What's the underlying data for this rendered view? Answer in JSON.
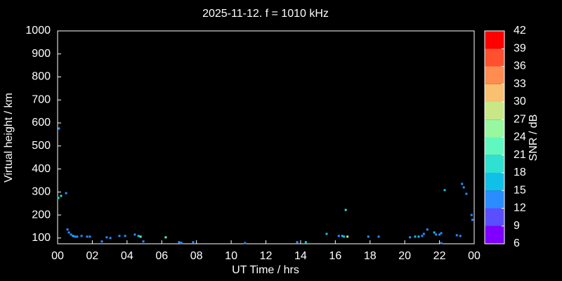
{
  "chart_data": {
    "type": "scatter",
    "title": "2025-11-12. f = 1010 kHz",
    "xlabel": "UT Time / hrs",
    "ylabel": "Virtual height / km",
    "xlim": [
      0,
      24
    ],
    "ylim": [
      75,
      1000
    ],
    "xticks": [
      {
        "value": 0,
        "label": "00"
      },
      {
        "value": 2,
        "label": "02"
      },
      {
        "value": 4,
        "label": "04"
      },
      {
        "value": 6,
        "label": "06"
      },
      {
        "value": 8,
        "label": "08"
      },
      10,
      12,
      14,
      16,
      18,
      20,
      22,
      {
        "value": 24,
        "label": "00"
      }
    ],
    "yticks": [
      100,
      200,
      300,
      400,
      500,
      600,
      700,
      800,
      900,
      1000
    ],
    "x": [
      0.08,
      0.04,
      0.2,
      0.49,
      0.57,
      0.65,
      0.77,
      0.89,
      1.01,
      1.13,
      1.38,
      1.7,
      1.86,
      2.55,
      2.83,
      3.04,
      3.56,
      3.89,
      4.45,
      4.66,
      4.78,
      4.94,
      6.23,
      7.0,
      7.13,
      7.81,
      10.8,
      13.8,
      14.3,
      15.5,
      16.2,
      16.4,
      16.5,
      16.6,
      16.7,
      17.9,
      18.5,
      20.3,
      20.6,
      20.8,
      21.0,
      21.1,
      21.3,
      21.7,
      21.8,
      22.0,
      22.1,
      22.1,
      22.3,
      23.0,
      23.2,
      23.3,
      23.4,
      23.55,
      23.85,
      23.9
    ],
    "y": [
      576,
      274,
      283,
      295,
      137,
      124,
      115,
      109,
      106,
      106,
      109,
      106,
      106,
      85,
      103,
      100,
      109,
      109,
      115,
      109,
      106,
      85,
      103,
      82,
      79,
      82,
      78,
      82,
      82,
      118,
      109,
      109,
      106,
      222,
      106,
      106,
      106,
      103,
      106,
      106,
      109,
      118,
      137,
      124,
      115,
      115,
      121,
      78,
      308,
      112,
      109,
      335,
      320,
      292,
      200,
      179
    ],
    "snr": [
      13,
      19,
      19,
      13,
      13,
      13,
      13,
      16,
      13,
      13,
      13,
      13,
      13,
      13,
      13,
      13,
      13,
      13,
      13,
      16,
      22,
      13,
      22,
      13,
      13,
      13,
      13,
      13,
      16,
      16,
      13,
      16,
      16,
      19,
      28,
      13,
      13,
      13,
      16,
      16,
      13,
      13,
      13,
      16,
      13,
      13,
      13,
      13,
      16,
      13,
      13,
      13,
      13,
      13,
      13,
      13
    ],
    "colorbar": {
      "label": "SNR / dB",
      "lim": [
        6,
        42
      ],
      "ticks": [
        6,
        9,
        12,
        15,
        18,
        21,
        24,
        27,
        30,
        33,
        36,
        39,
        42
      ],
      "colors": [
        "#7f00ff",
        "#5a4fff",
        "#2a8cff",
        "#10c0e8",
        "#30e0d0",
        "#60f8c0",
        "#98f8a0",
        "#c8e888",
        "#f8c070",
        "#ff8c50",
        "#ff5030",
        "#ff0000"
      ]
    }
  }
}
